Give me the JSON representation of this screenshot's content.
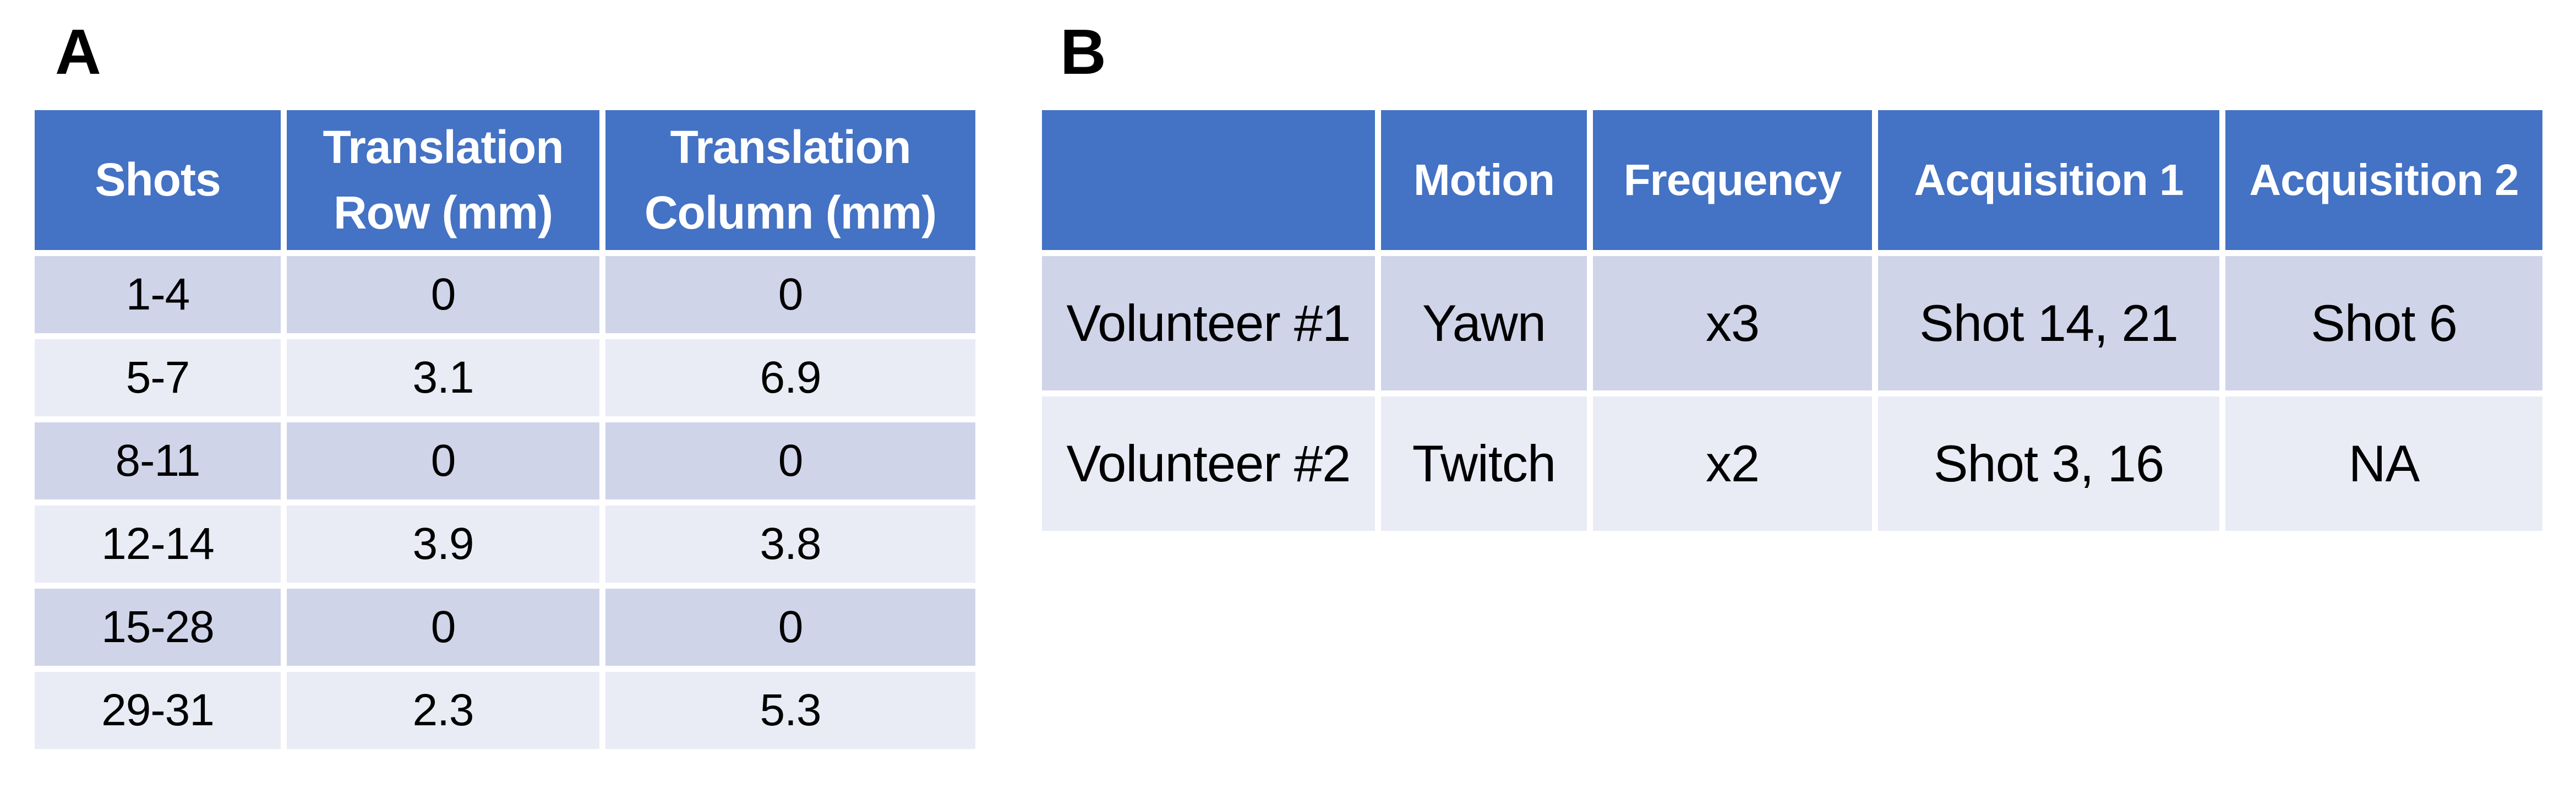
{
  "figure": {
    "colors": {
      "header_bg": "#4472C4",
      "band_dark": "#CFD4E9",
      "band_light": "#E9EBF5",
      "header_text": "#FFFFFF",
      "body_text": "#000000",
      "page_bg": "#FFFFFF"
    },
    "panels": [
      {
        "label": "A",
        "table": {
          "headers": [
            "Shots",
            "Translation Row (mm)",
            "Translation Column (mm)"
          ],
          "rows": [
            [
              "1-4",
              "0",
              "0"
            ],
            [
              "5-7",
              "3.1",
              "6.9"
            ],
            [
              "8-11",
              "0",
              "0"
            ],
            [
              "12-14",
              "3.9",
              "3.8"
            ],
            [
              "15-28",
              "0",
              "0"
            ],
            [
              "29-31",
              "2.3",
              "5.3"
            ]
          ]
        }
      },
      {
        "label": "B",
        "table": {
          "headers": [
            "",
            "Motion",
            "Frequency",
            "Acquisition 1",
            "Acquisition 2"
          ],
          "rows": [
            [
              "Volunteer #1",
              "Yawn",
              "x3",
              "Shot 14, 21",
              "Shot 6"
            ],
            [
              "Volunteer #2",
              "Twitch",
              "x2",
              "Shot 3, 16",
              "NA"
            ]
          ]
        }
      }
    ]
  }
}
